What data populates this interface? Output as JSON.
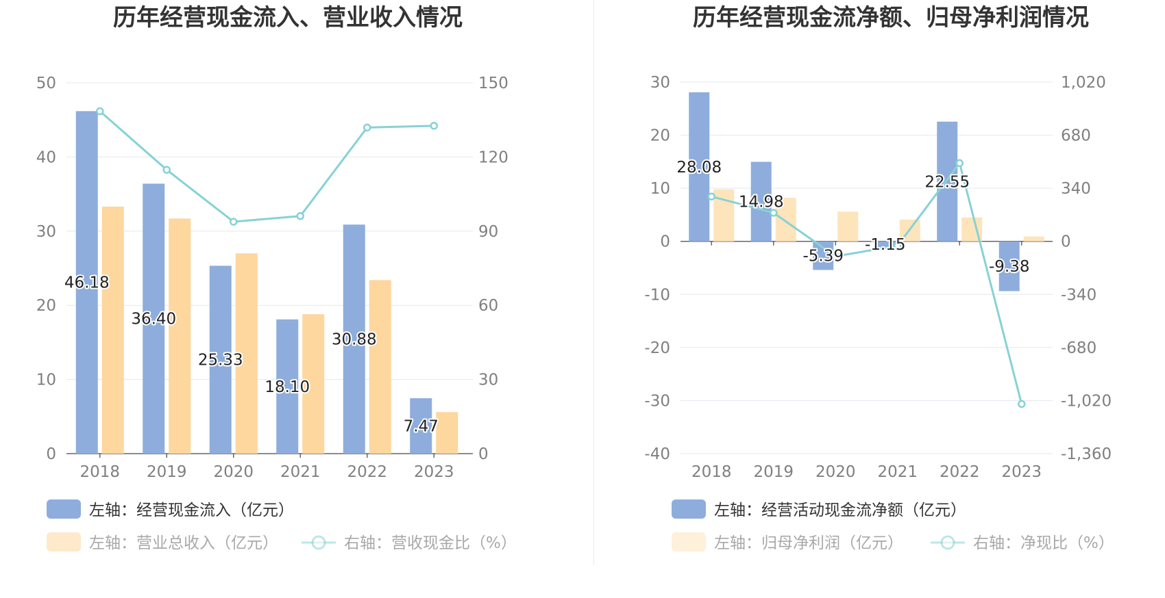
{
  "chart_data": [
    {
      "type": "bar",
      "title": "历年经营现金流入、营业收入情况",
      "categories": [
        "2018",
        "2019",
        "2020",
        "2021",
        "2022",
        "2023"
      ],
      "left_axis": {
        "ticks": [
          "0",
          "10",
          "20",
          "30",
          "40",
          "50"
        ],
        "ylim": [
          0,
          50
        ]
      },
      "right_axis": {
        "ticks": [
          "0",
          "30",
          "60",
          "90",
          "120",
          "150"
        ],
        "ylim": [
          0,
          150
        ]
      },
      "grid": true,
      "legend_position": "bottom",
      "series": [
        {
          "name": "左轴：经营现金流入（亿元）",
          "type": "bar",
          "axis": "left",
          "color": "#8eaddc",
          "values": [
            46.18,
            36.4,
            25.33,
            18.1,
            30.88,
            7.47
          ],
          "labels": [
            "46.18",
            "36.40",
            "25.33",
            "18.10",
            "30.88",
            "7.47"
          ]
        },
        {
          "name": "左轴：营业总收入（亿元）",
          "type": "bar",
          "axis": "left",
          "color": "#fdd79e",
          "values": [
            33.3,
            31.7,
            27.0,
            18.8,
            23.4,
            5.6
          ]
        },
        {
          "name": "右轴：营收现金比（%）",
          "type": "line",
          "axis": "right",
          "color": "#86d2d6",
          "values": [
            138.5,
            114.8,
            93.8,
            96.1,
            131.9,
            132.6
          ]
        }
      ]
    },
    {
      "type": "bar",
      "title": "历年经营现金流净额、归母净利润情况",
      "categories": [
        "2018",
        "2019",
        "2020",
        "2021",
        "2022",
        "2023"
      ],
      "left_axis": {
        "ticks": [
          "-40",
          "-30",
          "-20",
          "-10",
          "0",
          "10",
          "20",
          "30"
        ],
        "ylim": [
          -40,
          30
        ]
      },
      "right_axis": {
        "ticks": [
          "-1,360",
          "-1,020",
          "-680",
          "-340",
          "0",
          "340",
          "680",
          "1,020"
        ],
        "ylim": [
          -1360,
          1020
        ]
      },
      "grid": true,
      "legend_position": "bottom",
      "series": [
        {
          "name": "左轴：经营活动现金流净额（亿元）",
          "type": "bar",
          "axis": "left",
          "color": "#8eaddc",
          "values": [
            28.08,
            14.98,
            -5.39,
            -1.15,
            22.55,
            -9.38
          ],
          "labels": [
            "28.08",
            "14.98",
            "-5.39",
            "-1.15",
            "22.55",
            "-9.38"
          ]
        },
        {
          "name": "左轴：归母净利润（亿元）",
          "type": "bar",
          "axis": "left",
          "color": "#fde4bb",
          "values": [
            9.8,
            8.2,
            5.6,
            4.1,
            4.5,
            0.9
          ]
        },
        {
          "name": "右轴：净现比（%）",
          "type": "line",
          "axis": "right",
          "color": "#86d2d6",
          "values": [
            287,
            183,
            -96,
            -28,
            501,
            -1042
          ]
        }
      ]
    }
  ]
}
